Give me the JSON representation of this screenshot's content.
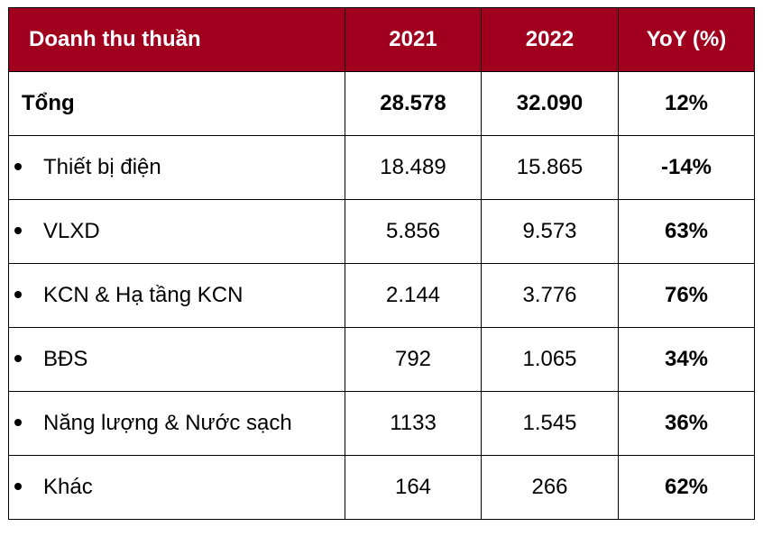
{
  "table": {
    "header": {
      "label": "Doanh thu thuần",
      "col_2021": "2021",
      "col_2022": "2022",
      "col_yoy": "YoY (%)"
    },
    "total": {
      "label": "Tổng",
      "v2021": "28.578",
      "v2022": "32.090",
      "yoy": "12%"
    },
    "rows": [
      {
        "label": "Thiết bị điện",
        "v2021": "18.489",
        "v2022": "15.865",
        "yoy": "-14%"
      },
      {
        "label": "VLXD",
        "v2021": "5.856",
        "v2022": "9.573",
        "yoy": "63%"
      },
      {
        "label": "KCN & Hạ tầng KCN",
        "v2021": "2.144",
        "v2022": "3.776",
        "yoy": "76%"
      },
      {
        "label": "BĐS",
        "v2021": "792",
        "v2022": "1.065",
        "yoy": "34%"
      },
      {
        "label": "Năng lượng & Nước sạch",
        "v2021": "1133",
        "v2022": "1.545",
        "yoy": "36%"
      },
      {
        "label": "Khác",
        "v2021": "164",
        "v2022": "266",
        "yoy": "62%"
      }
    ],
    "colors": {
      "header_bg": "#A0001E",
      "header_text": "#FFFFFF",
      "border": "#000000"
    }
  }
}
